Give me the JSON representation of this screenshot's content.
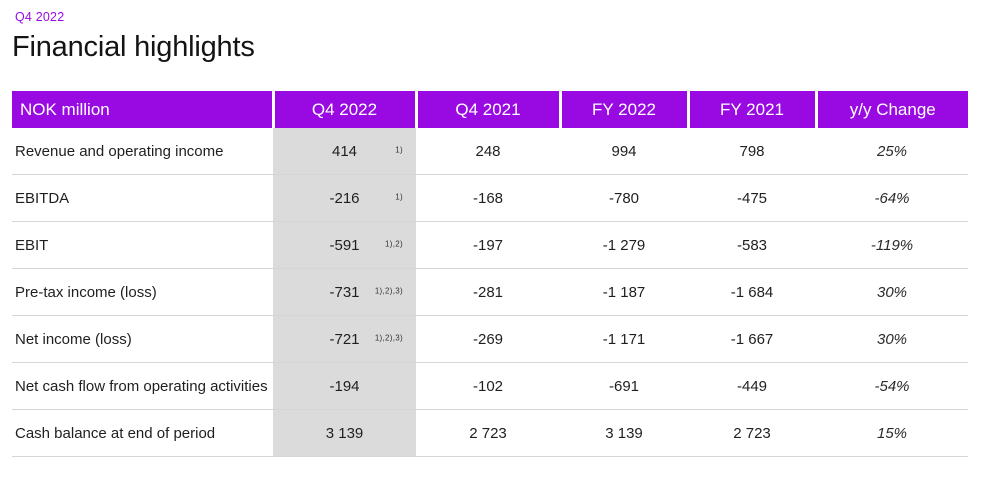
{
  "page": {
    "eyebrow": "Q4 2022",
    "title": "Financial highlights"
  },
  "colors": {
    "brand_purple": "#990AE3",
    "highlight_column_gray": "#DBDBDB",
    "row_divider": "#D6D6D6"
  },
  "table": {
    "columns": [
      "NOK million",
      "Q4 2022",
      "Q4 2021",
      "FY 2022",
      "FY 2021",
      "y/y Change"
    ],
    "highlighted_column": "Q4 2022",
    "rows": [
      {
        "label": "Revenue and operating income",
        "footnote": "1)",
        "values": [
          "414",
          "248",
          "994",
          "798",
          "25%"
        ]
      },
      {
        "label": "EBITDA",
        "footnote": "1)",
        "values": [
          "-216",
          "-168",
          "-780",
          "-475",
          "-64%"
        ]
      },
      {
        "label": "EBIT",
        "footnote": "1),2)",
        "values": [
          "-591",
          "-197",
          "-1 279",
          "-583",
          "-119%"
        ]
      },
      {
        "label": "Pre-tax income (loss)",
        "footnote": "1),2),3)",
        "values": [
          "-731",
          "-281",
          "-1 187",
          "-1 684",
          "30%"
        ]
      },
      {
        "label": "Net income (loss)",
        "footnote": "1),2),3)",
        "values": [
          "-721",
          "-269",
          "-1 171",
          "-1 667",
          "30%"
        ]
      },
      {
        "label": "Net cash flow from operating activities",
        "footnote": "",
        "values": [
          "-194",
          "-102",
          "-691",
          "-449",
          "-54%"
        ]
      },
      {
        "label": "Cash balance at end of period",
        "footnote": "",
        "values": [
          "3 139",
          "2 723",
          "3 139",
          "2 723",
          "15%"
        ]
      }
    ]
  }
}
